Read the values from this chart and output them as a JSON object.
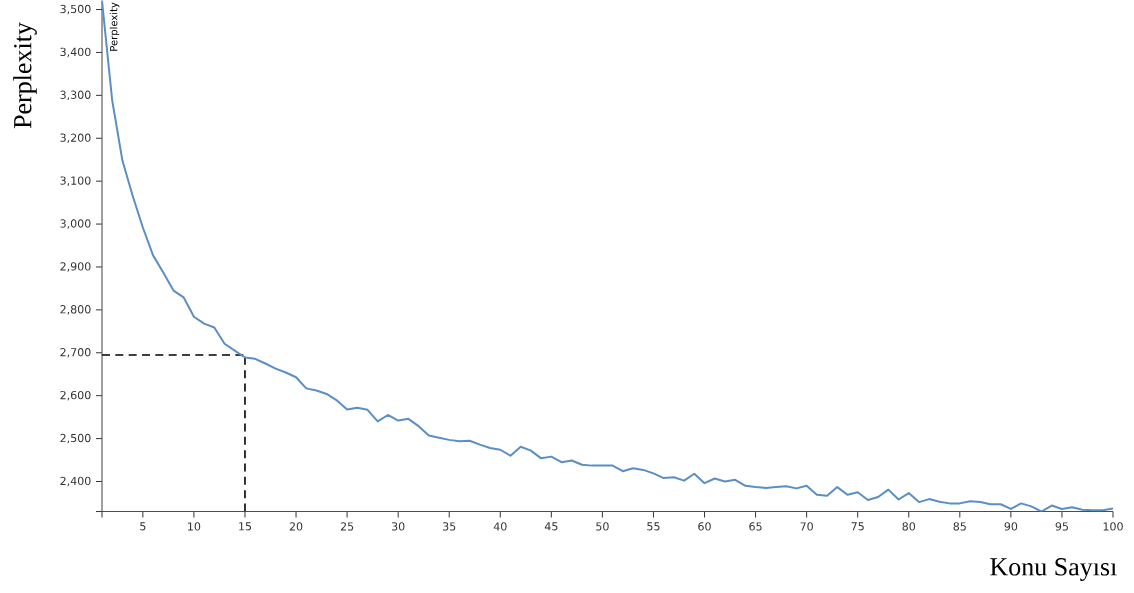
{
  "chart_data": {
    "type": "line",
    "xlabel": "Konu Sayısı",
    "ylabel": "Perplexity",
    "annotations": [
      "Perplexity"
    ],
    "x": [
      1,
      2,
      3,
      4,
      5,
      6,
      7,
      8,
      9,
      10,
      11,
      12,
      13,
      14,
      15,
      16,
      17,
      18,
      19,
      20,
      21,
      22,
      23,
      24,
      25,
      26,
      27,
      28,
      29,
      30,
      31,
      32,
      33,
      34,
      35,
      36,
      37,
      38,
      39,
      40,
      41,
      42,
      43,
      44,
      45,
      46,
      47,
      48,
      49,
      50,
      51,
      52,
      53,
      54,
      55,
      56,
      57,
      58,
      59,
      60,
      61,
      62,
      63,
      64,
      65,
      66,
      67,
      68,
      69,
      70,
      71,
      72,
      73,
      74,
      75,
      76,
      77,
      78,
      79,
      80,
      81,
      82,
      83,
      84,
      85,
      86,
      87,
      88,
      89,
      90,
      91,
      92,
      93,
      94,
      95,
      96,
      97,
      98,
      99,
      100
    ],
    "series": [
      {
        "color": "#5b8fc4",
        "values": [
          3520,
          3288,
          3148,
          3066,
          2992,
          2927,
          2887,
          2845,
          2829,
          2784,
          2768,
          2759,
          2721,
          2705,
          2689,
          2686,
          2675,
          2663,
          2654,
          2643,
          2617,
          2612,
          2604,
          2589,
          2568,
          2572,
          2567,
          2540,
          2555,
          2542,
          2546,
          2529,
          2507,
          2502,
          2497,
          2494,
          2495,
          2486,
          2478,
          2474,
          2460,
          2481,
          2472,
          2454,
          2458,
          2445,
          2449,
          2439,
          2437,
          2437,
          2437,
          2424,
          2431,
          2427,
          2419,
          2408,
          2410,
          2402,
          2418,
          2396,
          2407,
          2400,
          2404,
          2390,
          2387,
          2385,
          2387,
          2389,
          2384,
          2390,
          2369,
          2367,
          2387,
          2369,
          2375,
          2357,
          2364,
          2381,
          2358,
          2373,
          2352,
          2359,
          2353,
          2349,
          2349,
          2354,
          2352,
          2347,
          2347,
          2336,
          2349,
          2342,
          2330,
          2344,
          2336,
          2340,
          2334,
          2333,
          2333,
          2337
        ]
      }
    ],
    "xlim": [
      1,
      100
    ],
    "ylim": [
      2330,
      3521
    ],
    "xticks": [
      {
        "value": 1,
        "label": null
      },
      5,
      10,
      15,
      20,
      25,
      30,
      35,
      40,
      45,
      50,
      55,
      60,
      65,
      70,
      75,
      80,
      85,
      90,
      95,
      100
    ],
    "yticks": [
      {
        "value": 2330,
        "label": null
      },
      {
        "value": 2400,
        "label": "2,400"
      },
      {
        "value": 2500,
        "label": "2,500"
      },
      {
        "value": 2600,
        "label": "2,600"
      },
      {
        "value": 2700,
        "label": "2,700"
      },
      {
        "value": 2800,
        "label": "2,800"
      },
      {
        "value": 2900,
        "label": "2,900"
      },
      {
        "value": 3000,
        "label": "3,000"
      },
      {
        "value": 3100,
        "label": "3,100"
      },
      {
        "value": 3200,
        "label": "3,200"
      },
      {
        "value": 3300,
        "label": "3,300"
      },
      {
        "value": 3400,
        "label": "3,400"
      },
      {
        "value": 3500,
        "label": "3,500"
      }
    ],
    "ref_lines": [
      {
        "axis": "y",
        "value": 2695,
        "color": "#000000",
        "line_style": "dashed"
      },
      {
        "axis": "x",
        "value": 15,
        "color": "#000000",
        "line_style": "dashed"
      }
    ],
    "grid": false,
    "marker": "none",
    "line_style": "solid"
  }
}
